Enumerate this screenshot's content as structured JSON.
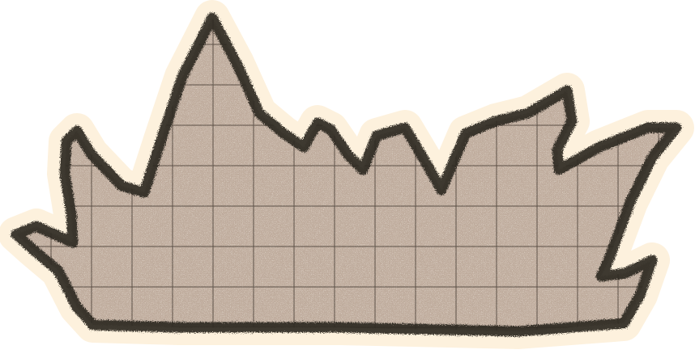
{
  "illustration": {
    "subject": "crown-shaped-grid-sticker",
    "colors": {
      "background": "#ffffff",
      "halo": "#fdf1dd",
      "fill": "#bfac9d",
      "speckle": "#f3e7d6",
      "outline": "#2e2924",
      "grid": "#4a4038"
    },
    "grid_cell": 50,
    "grid_origin": [
      13,
      5
    ]
  }
}
